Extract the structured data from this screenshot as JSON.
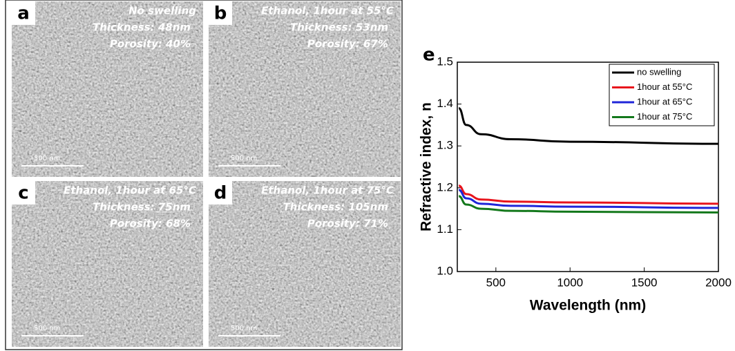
{
  "panels": [
    {
      "letter": "a",
      "lines": [
        "No swelling",
        "Thickness: 48nm",
        "Porosity: 40%"
      ],
      "scale": "500 nm"
    },
    {
      "letter": "b",
      "lines": [
        "Ethanol, 1hour at 55°C",
        "Thickness: 53nm",
        "Porosity: 67%"
      ],
      "scale": "500 nm"
    },
    {
      "letter": "c",
      "lines": [
        "Ethanol, 1hour at 65°C",
        "Thickness: 75nm",
        "Porosity: 68%"
      ],
      "scale": "500 nm"
    },
    {
      "letter": "d",
      "lines": [
        "Ethanol, 1hour at 75°C",
        "Thickness: 105nm",
        "Porosity: 71%"
      ],
      "scale": "500 nm"
    }
  ],
  "chart_data": {
    "type": "line",
    "panel_letter": "e",
    "x_label": "Wavelength (nm)",
    "y_label": "Refractive index, n",
    "x": [
      250,
      300,
      400,
      600,
      1000,
      2000
    ],
    "series": [
      {
        "name": "no swelling",
        "color": "#000000",
        "values": [
          1.39,
          1.35,
          1.328,
          1.316,
          1.31,
          1.305
        ]
      },
      {
        "name": "1hour at 55°C",
        "color": "#e8141c",
        "values": [
          1.205,
          1.185,
          1.172,
          1.167,
          1.165,
          1.162
        ]
      },
      {
        "name": "1hour at 65°C",
        "color": "#1f25d8",
        "values": [
          1.195,
          1.175,
          1.162,
          1.157,
          1.155,
          1.152
        ]
      },
      {
        "name": "1hour at 75°C",
        "color": "#13781b",
        "values": [
          1.18,
          1.16,
          1.15,
          1.145,
          1.143,
          1.141
        ]
      }
    ],
    "xlim": [
      240,
      2000
    ],
    "ylim": [
      1.0,
      1.5
    ],
    "xticks": [
      500,
      1000,
      1500,
      2000
    ],
    "yticks": [
      {
        "value": 1.0,
        "label": "1.0"
      },
      1.1,
      1.2,
      1.3,
      1.4,
      1.5
    ],
    "legend": "upper right"
  }
}
